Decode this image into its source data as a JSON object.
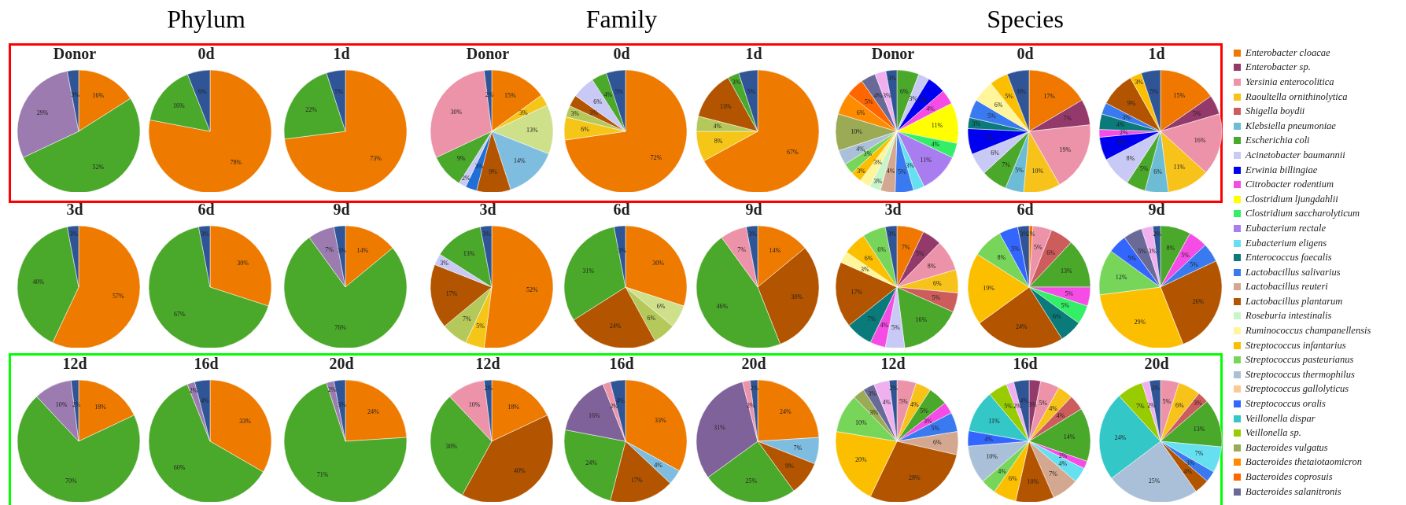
{
  "chart_data": [
    {
      "type": "pie",
      "title": "Donor",
      "categories": [
        null,
        null,
        null,
        null
      ],
      "values": [
        16,
        52,
        29,
        3
      ],
      "value_labels": [
        "16%",
        "52%",
        "29%",
        "3%"
      ],
      "colors": [
        "#ef7a00",
        "#4aa82a",
        "#9b7bb0",
        "#2f5597"
      ]
    },
    {
      "type": "pie",
      "title": "0d",
      "annotations": [
        "Phylum"
      ],
      "categories": [
        null,
        null,
        null
      ],
      "values": [
        78,
        16,
        6
      ],
      "value_labels": [
        "78%",
        "16%",
        "6%"
      ],
      "colors": [
        "#ef7a00",
        "#4aa82a",
        "#2f5597"
      ]
    },
    {
      "type": "pie",
      "title": "1d",
      "categories": [
        null,
        null,
        null
      ],
      "values": [
        73,
        22,
        5
      ],
      "value_labels": [
        "73%",
        "22%",
        "5%"
      ],
      "colors": [
        "#ef7a00",
        "#4aa82a",
        "#2f5597"
      ]
    },
    {
      "type": "pie",
      "title": "Donor",
      "categories": [
        null,
        null,
        null,
        null,
        null,
        null,
        null,
        null,
        null,
        null
      ],
      "values": [
        15,
        3,
        13,
        14,
        9,
        3,
        2,
        9,
        30,
        2
      ],
      "value_labels": [
        "15%",
        "3%",
        "13%",
        "14%",
        "9%",
        "3%",
        "2%",
        "9%",
        "30%",
        "2%"
      ],
      "colors": [
        "#ef7a00",
        "#f5c518",
        "#cfe08a",
        "#7fbde0",
        "#b35400",
        "#1f6fd6",
        "#c9c9f5",
        "#4aa82a",
        "#ec93a9",
        "#2f5597"
      ]
    },
    {
      "type": "pie",
      "title": "0d",
      "annotations": [
        "Family"
      ],
      "categories": [
        null,
        null,
        null,
        null,
        null,
        null,
        null
      ],
      "values": [
        72,
        6,
        3,
        3,
        6,
        4,
        5
      ],
      "value_labels": [
        "72%",
        "6%",
        "3%",
        "3%",
        "6%",
        "4%",
        "5%"
      ],
      "colors": [
        "#ef7a00",
        "#f5c518",
        "#b5c95a",
        "#b35400",
        "#c9c9f5",
        "#4aa82a",
        "#2f5597"
      ]
    },
    {
      "type": "pie",
      "title": "1d",
      "categories": [
        null,
        null,
        null,
        null,
        null,
        null
      ],
      "values": [
        67,
        8,
        4,
        13,
        3,
        5
      ],
      "value_labels": [
        "67%",
        "8%",
        "4%",
        "13%",
        "3%",
        "5%"
      ],
      "colors": [
        "#ef7a00",
        "#f5c518",
        "#b5c95a",
        "#b35400",
        "#4aa82a",
        "#2f5597"
      ]
    },
    {
      "type": "pie",
      "title": "Donor",
      "legend": "right",
      "categories": [
        "Enterobacter cloacae",
        "Enterobacter sp.",
        "Yersinia enterocolitica",
        "Raoultella ornithinolytica",
        "Shigella boydii",
        "Klebsiella pneumoniae",
        "Escherichia coli",
        "Acinetobacter baumannii",
        "Erwinia billingiae",
        "Citrobacter rodentium",
        "Clostridium ljungdahlii",
        "Clostridium saccharolyticum",
        "Eubacterium rectale",
        "Eubacterium eligens",
        "Enterococcus faecalis",
        "Lactobacillus salivarius",
        "Lactobacillus reuteri",
        "Lactobacillus plantarum",
        "Roseburia intestinalis",
        "Ruminococcus champanellensis",
        "Streptococcus infantarius",
        "Streptococcus pasteurianus",
        "Streptococcus thermophilus",
        "Streptococcus gallolyticus",
        "Streptococcus oralis",
        "Veillonella dispar",
        "Veillonella sp.",
        "Bacteroides vulgatus",
        "Bacteroides thetaiotaomicron",
        "Bacteroides coprosuis",
        "Bacteroides salanitronis",
        null,
        null
      ],
      "values": [
        null,
        null,
        null,
        null,
        null,
        null,
        6,
        3,
        5,
        4,
        11,
        4,
        11,
        3,
        null,
        5,
        4,
        null,
        3,
        3,
        3,
        3,
        4,
        null,
        null,
        null,
        null,
        10,
        6,
        5,
        4,
        3,
        3
      ],
      "value_labels": [
        null,
        null,
        null,
        null,
        null,
        null,
        "6%",
        "3%",
        "5%",
        "4%",
        "11%",
        "4%",
        "11%",
        "3%",
        null,
        "5%",
        "4%",
        null,
        "3%",
        "3%",
        "3%",
        "3%",
        "4%",
        null,
        null,
        null,
        null,
        "10%",
        "6%",
        "5%",
        "4%",
        "3%",
        "3%"
      ],
      "colors": [
        "#f07800",
        "#943a6b",
        "#ec93a9",
        "#f7c21a",
        "#cd5c5c",
        "#6cbcd6",
        "#4aa82a",
        "#c9c9f5",
        "#0000f0",
        "#f54ce6",
        "#ffff00",
        "#33ee66",
        "#a97cf0",
        "#66e0f0",
        "#0a7a7a",
        "#3a7af0",
        "#d4a890",
        "#b35400",
        "#c8f5c8",
        "#fff59a",
        "#fcbf00",
        "#77d65a",
        "#aac0d8",
        "#fcc896",
        "#3366ff",
        "#33c7c7",
        "#99cc00",
        "#9aaa55",
        "#ff8c00",
        "#ff6600",
        "#6a6a99",
        "#f0b0f0",
        "#2f5597"
      ]
    },
    {
      "type": "pie",
      "title": "0d",
      "annotations": [
        "Species"
      ],
      "categories": [
        null,
        null,
        null,
        null,
        null,
        null,
        null,
        null,
        null,
        null,
        null,
        null,
        null,
        null,
        null,
        null,
        null,
        null,
        null,
        null,
        null,
        null,
        null,
        null,
        null,
        null,
        null,
        null,
        null,
        null,
        null,
        null,
        null
      ],
      "values": [
        17,
        7,
        19,
        10,
        null,
        5,
        7,
        6,
        7,
        null,
        null,
        null,
        null,
        null,
        3,
        5,
        null,
        null,
        null,
        6,
        5,
        null,
        null,
        null,
        null,
        null,
        null,
        null,
        null,
        null,
        null,
        null,
        6
      ],
      "value_labels": [
        "17%",
        "7%",
        "19%",
        "10%",
        null,
        "5%",
        "7%",
        "6%",
        "7%",
        null,
        null,
        null,
        null,
        null,
        "3%",
        "5%",
        null,
        null,
        null,
        "6%",
        "5%",
        null,
        null,
        null,
        null,
        null,
        null,
        null,
        null,
        null,
        null,
        null,
        "6%"
      ],
      "colors": [
        "#f07800",
        "#943a6b",
        "#ec93a9",
        "#f7c21a",
        null,
        "#6cbcd6",
        "#4aa82a",
        "#c9c9f5",
        "#0000f0",
        null,
        null,
        null,
        null,
        null,
        "#0a7a7a",
        "#3a7af0",
        null,
        null,
        null,
        "#fff59a",
        "#fcbf00",
        null,
        null,
        null,
        null,
        null,
        null,
        null,
        null,
        null,
        null,
        null,
        "#2f5597"
      ]
    },
    {
      "type": "pie",
      "title": "1d",
      "categories": [
        null,
        null,
        null,
        null,
        null,
        null,
        null,
        null,
        null,
        null,
        null,
        null,
        null,
        null,
        null,
        null,
        null,
        null,
        null,
        null,
        null,
        null,
        null,
        null,
        null,
        null,
        null,
        null,
        null,
        null,
        null,
        null,
        null
      ],
      "values": [
        15,
        5,
        16,
        11,
        null,
        6,
        5,
        8,
        6,
        2,
        null,
        null,
        null,
        null,
        4,
        3,
        null,
        9,
        null,
        null,
        3,
        null,
        null,
        null,
        null,
        null,
        null,
        null,
        null,
        null,
        null,
        null,
        5
      ],
      "value_labels": [
        "15%",
        "5%",
        "16%",
        "11%",
        null,
        "6%",
        "5%",
        "8%",
        "6%",
        "2%",
        null,
        null,
        null,
        null,
        "4%",
        "3%",
        null,
        "9%",
        null,
        null,
        "3%",
        null,
        null,
        null,
        null,
        null,
        null,
        null,
        null,
        null,
        null,
        null,
        "5%"
      ],
      "colors": [
        "#f07800",
        "#943a6b",
        "#ec93a9",
        "#f7c21a",
        null,
        "#6cbcd6",
        "#4aa82a",
        "#c9c9f5",
        "#0000f0",
        "#f54ce6",
        null,
        null,
        null,
        null,
        "#0a7a7a",
        "#3a7af0",
        null,
        "#b35400",
        null,
        null,
        "#fcbf00",
        null,
        null,
        null,
        null,
        null,
        null,
        null,
        null,
        null,
        null,
        null,
        "#2f5597"
      ]
    },
    {
      "type": "pie",
      "title": "3d",
      "categories": [
        null,
        null,
        null
      ],
      "values": [
        57,
        40,
        3
      ],
      "value_labels": [
        "57%",
        "40%",
        "3%"
      ],
      "colors": [
        "#ef7a00",
        "#4aa82a",
        "#2f5597"
      ]
    },
    {
      "type": "pie",
      "title": "6d",
      "categories": [
        null,
        null,
        null
      ],
      "values": [
        30,
        67,
        3
      ],
      "value_labels": [
        "30%",
        "67%",
        "3%"
      ],
      "colors": [
        "#ef7a00",
        "#4aa82a",
        "#2f5597"
      ]
    },
    {
      "type": "pie",
      "title": "9d",
      "categories": [
        null,
        null,
        null,
        null
      ],
      "values": [
        14,
        76,
        7,
        3
      ],
      "value_labels": [
        "14%",
        "76%",
        "7%",
        "3%"
      ],
      "colors": [
        "#ef7a00",
        "#4aa82a",
        "#9b7bb0",
        "#2f5597"
      ]
    },
    {
      "type": "pie",
      "title": "3d",
      "categories": [
        null,
        null,
        null,
        null,
        null,
        null,
        null
      ],
      "values": [
        52,
        5,
        7,
        17,
        3,
        13,
        3
      ],
      "value_labels": [
        "52%",
        "5%",
        "7%",
        "17%",
        "3%",
        "13%",
        "3%"
      ],
      "colors": [
        "#ef7a00",
        "#f5c518",
        "#b5c95a",
        "#b35400",
        "#c9c9f5",
        "#4aa82a",
        "#2f5597"
      ]
    },
    {
      "type": "pie",
      "title": "6d",
      "categories": [
        null,
        null,
        null,
        null,
        null,
        null
      ],
      "values": [
        30,
        6,
        6,
        24,
        31,
        3
      ],
      "value_labels": [
        "30%",
        "6%",
        "6%",
        "24%",
        "31%",
        "3%"
      ],
      "colors": [
        "#ef7a00",
        "#cfe08a",
        "#b5c95a",
        "#b35400",
        "#4aa82a",
        "#2f5597"
      ]
    },
    {
      "type": "pie",
      "title": "9d",
      "categories": [
        null,
        null,
        null,
        null,
        null
      ],
      "values": [
        14,
        30,
        46,
        7,
        3
      ],
      "value_labels": [
        "14%",
        "30%",
        "46%",
        "7%",
        "3%"
      ],
      "colors": [
        "#ef7a00",
        "#b35400",
        "#4aa82a",
        "#ec93a9",
        "#2f5597"
      ]
    },
    {
      "type": "pie",
      "title": "3d",
      "categories": [
        null,
        null,
        null,
        null,
        null,
        null,
        null,
        null,
        null,
        null,
        null,
        null,
        null,
        null,
        null,
        null,
        null,
        null,
        null,
        null,
        null,
        null,
        null,
        null,
        null,
        null,
        null,
        null,
        null,
        null,
        null,
        null,
        null
      ],
      "values": [
        7,
        5,
        8,
        6,
        5,
        null,
        16,
        5,
        null,
        4,
        null,
        null,
        null,
        null,
        7,
        null,
        null,
        17,
        null,
        3,
        6,
        6,
        null,
        null,
        null,
        null,
        null,
        null,
        null,
        null,
        null,
        null,
        3
      ],
      "value_labels": [
        "7%",
        "5%",
        "8%",
        "6%",
        "5%",
        null,
        "16%",
        "5%",
        null,
        "4%",
        null,
        null,
        null,
        null,
        "7%",
        null,
        null,
        "17%",
        null,
        "3%",
        "6%",
        "6%",
        null,
        null,
        null,
        null,
        null,
        null,
        null,
        null,
        null,
        null,
        "3%"
      ],
      "colors": [
        "#f07800",
        "#943a6b",
        "#ec93a9",
        "#f7c21a",
        "#cd5c5c",
        null,
        "#4aa82a",
        "#c9c9f5",
        null,
        "#f54ce6",
        null,
        null,
        null,
        null,
        "#0a7a7a",
        null,
        null,
        "#b35400",
        null,
        "#fff59a",
        "#fcbf00",
        "#77d65a",
        null,
        null,
        null,
        null,
        null,
        null,
        null,
        null,
        null,
        null,
        "#2f5597"
      ]
    },
    {
      "type": "pie",
      "title": "6d",
      "categories": [
        null,
        null,
        null,
        null,
        null,
        null,
        null,
        null,
        null,
        null,
        null,
        null,
        null,
        null,
        null,
        null,
        null,
        null,
        null,
        null,
        null,
        null,
        null,
        null,
        null,
        null,
        null,
        null,
        null,
        null,
        null,
        null,
        null
      ],
      "values": [
        1,
        null,
        5,
        null,
        6,
        null,
        13,
        null,
        null,
        5,
        null,
        5,
        null,
        null,
        6,
        null,
        null,
        24,
        null,
        null,
        19,
        8,
        null,
        null,
        5,
        null,
        null,
        null,
        null,
        null,
        null,
        null,
        3
      ],
      "value_labels": [
        "1%",
        null,
        "5%",
        null,
        "6%",
        null,
        "13%",
        null,
        null,
        "5%",
        null,
        "5%",
        null,
        null,
        "6%",
        null,
        null,
        "24%",
        null,
        null,
        "19%",
        "8%",
        null,
        null,
        "5%",
        null,
        null,
        null,
        null,
        null,
        null,
        null,
        "3%"
      ],
      "colors": [
        "#f07800",
        null,
        "#ec93a9",
        null,
        "#cd5c5c",
        null,
        "#4aa82a",
        null,
        null,
        "#f54ce6",
        null,
        "#33ee66",
        null,
        null,
        "#0a7a7a",
        null,
        null,
        "#b35400",
        null,
        null,
        "#fcbf00",
        "#77d65a",
        null,
        null,
        "#3366ff",
        null,
        null,
        null,
        null,
        null,
        null,
        null,
        "#2f5597"
      ]
    },
    {
      "type": "pie",
      "title": "9d",
      "categories": [
        null,
        null,
        null,
        null,
        null,
        null,
        null,
        null,
        null,
        null,
        null,
        null,
        null,
        null,
        null,
        null,
        null,
        null,
        null,
        null,
        null,
        null,
        null,
        null,
        null,
        null,
        null,
        null,
        null,
        null,
        null,
        null,
        null
      ],
      "values": [
        null,
        null,
        null,
        null,
        null,
        null,
        8,
        null,
        null,
        5,
        null,
        null,
        null,
        null,
        null,
        5,
        null,
        26,
        null,
        null,
        29,
        12,
        null,
        null,
        5,
        null,
        null,
        null,
        null,
        null,
        5,
        3,
        2
      ],
      "value_labels": [
        null,
        null,
        null,
        null,
        null,
        null,
        "8%",
        null,
        null,
        "5%",
        null,
        null,
        null,
        null,
        null,
        "5%",
        null,
        "26%",
        null,
        null,
        "29%",
        "12%",
        null,
        null,
        "5%",
        null,
        null,
        null,
        null,
        null,
        "5%",
        "3%",
        "2%"
      ],
      "colors": [
        null,
        null,
        null,
        null,
        null,
        null,
        "#4aa82a",
        null,
        null,
        "#f54ce6",
        null,
        null,
        null,
        null,
        null,
        "#3a7af0",
        null,
        "#b35400",
        null,
        null,
        "#fcbf00",
        "#77d65a",
        null,
        null,
        "#3366ff",
        null,
        null,
        null,
        null,
        null,
        "#6a6a99",
        "#f0b0f0",
        "#2f5597"
      ]
    },
    {
      "type": "pie",
      "title": "12d",
      "categories": [
        null,
        null,
        null,
        null
      ],
      "values": [
        18,
        70,
        10,
        2
      ],
      "value_labels": [
        "18%",
        "70%",
        "10%",
        "2%"
      ],
      "colors": [
        "#ef7a00",
        "#4aa82a",
        "#9b7bb0",
        "#2f5597"
      ]
    },
    {
      "type": "pie",
      "title": "16d",
      "categories": [
        null,
        null,
        null,
        null
      ],
      "values": [
        33,
        60,
        2,
        4
      ],
      "value_labels": [
        "33%",
        "60%",
        "2%",
        "4%"
      ],
      "colors": [
        "#ef7a00",
        "#4aa82a",
        "#9b7bb0",
        "#2f5597"
      ]
    },
    {
      "type": "pie",
      "title": "20d",
      "categories": [
        null,
        null,
        null,
        null
      ],
      "values": [
        24,
        71,
        2,
        3
      ],
      "value_labels": [
        "24%",
        "71%",
        "2%",
        "3%"
      ],
      "colors": [
        "#ef7a00",
        "#4aa82a",
        "#9b7bb0",
        "#2f5597"
      ]
    },
    {
      "type": "pie",
      "title": "12d",
      "categories": [
        null,
        null,
        null,
        null,
        null
      ],
      "values": [
        18,
        40,
        30,
        10,
        2
      ],
      "value_labels": [
        "18%",
        "40%",
        "30%",
        "10%",
        "2%"
      ],
      "colors": [
        "#ef7a00",
        "#b35400",
        "#4aa82a",
        "#ec93a9",
        "#2f5597"
      ]
    },
    {
      "type": "pie",
      "title": "16d",
      "categories": [
        null,
        null,
        null,
        null,
        null,
        null,
        null
      ],
      "values": [
        33,
        4,
        17,
        24,
        16,
        2,
        4
      ],
      "value_labels": [
        "33%",
        "4%",
        "17%",
        "24%",
        "16%",
        "2%",
        "4%"
      ],
      "colors": [
        "#ef7a00",
        "#7fbde0",
        "#b35400",
        "#4aa82a",
        "#80629a",
        "#ec93a9",
        "#2f5597"
      ]
    },
    {
      "type": "pie",
      "title": "20d",
      "categories": [
        null,
        null,
        null,
        null,
        null,
        null,
        null
      ],
      "values": [
        24,
        7,
        9,
        25,
        31,
        2,
        2
      ],
      "value_labels": [
        "24%",
        "7%",
        "9%",
        "25%",
        "31%",
        "2%",
        "2%"
      ],
      "colors": [
        "#ef7a00",
        "#7fbde0",
        "#b35400",
        "#4aa82a",
        "#80629a",
        "#ec93a9",
        "#2f5597"
      ]
    },
    {
      "type": "pie",
      "title": "12d",
      "categories": [
        null,
        null,
        null,
        null,
        null,
        null,
        null,
        null,
        null,
        null,
        null,
        null,
        null,
        null,
        null,
        null,
        null,
        null,
        null,
        null,
        null,
        null,
        null,
        null,
        null,
        null,
        null,
        null,
        null,
        null,
        null,
        null,
        null
      ],
      "values": [
        null,
        null,
        5,
        4,
        null,
        null,
        5,
        null,
        null,
        3,
        null,
        null,
        null,
        null,
        null,
        5,
        6,
        28,
        null,
        null,
        20,
        10,
        null,
        null,
        null,
        null,
        null,
        3,
        null,
        null,
        3,
        4,
        2
      ],
      "value_labels": [
        null,
        null,
        "5%",
        "4%",
        null,
        null,
        "5%",
        null,
        null,
        "3%",
        null,
        null,
        null,
        null,
        null,
        "5%",
        "6%",
        "28%",
        null,
        null,
        "20%",
        "10%",
        null,
        null,
        null,
        null,
        null,
        "3%",
        null,
        null,
        "3%",
        "4%",
        "2%"
      ],
      "colors": [
        null,
        null,
        "#ec93a9",
        "#f7c21a",
        null,
        null,
        "#4aa82a",
        null,
        null,
        "#f54ce6",
        null,
        null,
        null,
        null,
        null,
        "#3a7af0",
        "#d4a890",
        "#b35400",
        null,
        null,
        "#fcbf00",
        "#77d65a",
        null,
        null,
        null,
        null,
        null,
        "#9aaa55",
        null,
        null,
        "#6a6a99",
        "#f0b0f0",
        "#2f5597"
      ]
    },
    {
      "type": "pie",
      "title": "16d",
      "categories": [
        null,
        null,
        null,
        null,
        null,
        null,
        null,
        null,
        null,
        null,
        null,
        null,
        null,
        null,
        null,
        null,
        null,
        null,
        null,
        null,
        null,
        null,
        null,
        null,
        null,
        null,
        null,
        null,
        null,
        null,
        null,
        null,
        null
      ],
      "values": [
        null,
        3,
        5,
        4,
        4,
        null,
        14,
        null,
        null,
        2,
        null,
        null,
        null,
        4,
        null,
        null,
        7,
        10,
        null,
        null,
        6,
        4,
        10,
        null,
        4,
        11,
        5,
        null,
        null,
        null,
        null,
        2,
        4
      ],
      "value_labels": [
        null,
        "3%",
        "5%",
        "4%",
        "4%",
        null,
        "14%",
        null,
        null,
        "2%",
        null,
        null,
        null,
        "4%",
        null,
        null,
        "7%",
        "10%",
        null,
        null,
        "6%",
        "4%",
        "10%",
        null,
        "4%",
        "11%",
        "5%",
        null,
        null,
        null,
        null,
        "2%",
        "4%"
      ],
      "colors": [
        null,
        "#943a6b",
        "#ec93a9",
        "#f7c21a",
        "#cd5c5c",
        null,
        "#4aa82a",
        null,
        null,
        "#f54ce6",
        null,
        null,
        null,
        "#66e0f0",
        null,
        null,
        "#d4a890",
        "#b35400",
        null,
        null,
        "#fcbf00",
        "#77d65a",
        "#aac0d8",
        null,
        "#3366ff",
        "#33c7c7",
        "#99cc00",
        null,
        null,
        null,
        null,
        "#f0b0f0",
        "#2f5597"
      ]
    },
    {
      "type": "pie",
      "title": "20d",
      "categories": [
        null,
        null,
        null,
        null,
        null,
        null,
        null,
        null,
        null,
        null,
        null,
        null,
        null,
        null,
        null,
        null,
        null,
        null,
        null,
        null,
        null,
        null,
        null,
        null,
        null,
        null,
        null,
        null,
        null,
        null,
        null,
        null,
        null
      ],
      "values": [
        null,
        null,
        5,
        6,
        3,
        null,
        13,
        null,
        null,
        null,
        null,
        null,
        null,
        7,
        null,
        3,
        null,
        4,
        null,
        null,
        null,
        null,
        25,
        null,
        null,
        24,
        7,
        null,
        null,
        null,
        null,
        2,
        3
      ],
      "value_labels": [
        null,
        null,
        "5%",
        "6%",
        "3%",
        null,
        "13%",
        null,
        null,
        null,
        null,
        null,
        null,
        "7%",
        null,
        "3%",
        null,
        "4%",
        null,
        null,
        null,
        null,
        "25%",
        null,
        null,
        "24%",
        "7%",
        null,
        null,
        null,
        null,
        "2%",
        "3%"
      ],
      "colors": [
        null,
        null,
        "#ec93a9",
        "#f7c21a",
        "#cd5c5c",
        null,
        "#4aa82a",
        null,
        null,
        null,
        null,
        null,
        null,
        "#66e0f0",
        null,
        "#3a7af0",
        null,
        "#b35400",
        null,
        null,
        null,
        null,
        "#aac0d8",
        null,
        null,
        "#33c7c7",
        "#99cc00",
        null,
        null,
        null,
        null,
        "#f0b0f0",
        "#2f5597"
      ]
    }
  ]
}
